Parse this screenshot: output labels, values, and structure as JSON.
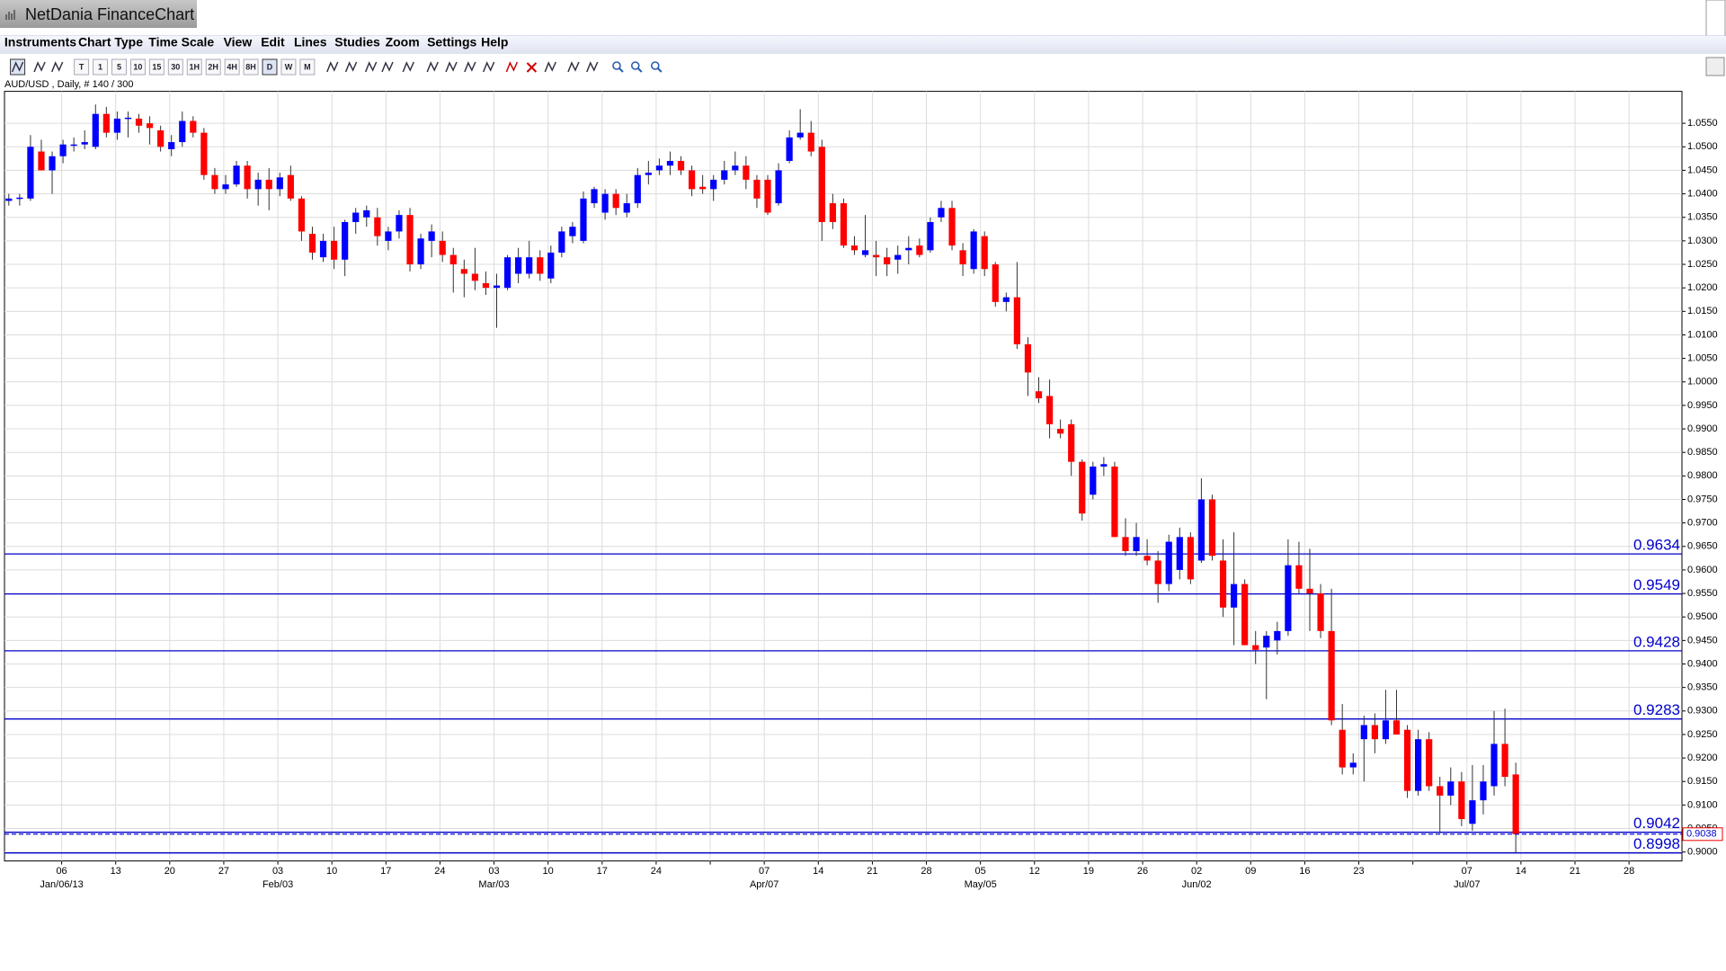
{
  "window": {
    "title": "NetDania FinanceChart"
  },
  "menu": [
    "Instruments",
    "Chart Type",
    "Time Scale",
    "View",
    "Edit",
    "Lines",
    "Studies",
    "Zoom",
    "Settings",
    "Help"
  ],
  "toolbar": [
    "T",
    "1",
    "5",
    "10",
    "15",
    "30",
    "1H",
    "2H",
    "4H",
    "8H",
    "D",
    "W",
    "M"
  ],
  "chart_data": {
    "type": "candlestick",
    "title": "AUD/USD , Daily, # 140 / 300",
    "up_color": "#0000ff",
    "down_color": "#ff0000",
    "grid": true,
    "ylim": [
      0.8981,
      1.0618
    ],
    "yticks": [
      {
        "value": 0.9,
        "label": "0.9000"
      },
      {
        "value": 0.905,
        "label": "0.9050"
      },
      {
        "value": 0.91,
        "label": "0.9100"
      },
      {
        "value": 0.915,
        "label": "0.9150"
      },
      {
        "value": 0.92,
        "label": "0.9200"
      },
      {
        "value": 0.925,
        "label": "0.9250"
      },
      {
        "value": 0.93,
        "label": "0.9300"
      },
      {
        "value": 0.935,
        "label": "0.9350"
      },
      {
        "value": 0.94,
        "label": "0.9400"
      },
      {
        "value": 0.945,
        "label": "0.9450"
      },
      {
        "value": 0.95,
        "label": "0.9500"
      },
      {
        "value": 0.955,
        "label": "0.9550"
      },
      {
        "value": 0.96,
        "label": "0.9600"
      },
      {
        "value": 0.965,
        "label": "0.9650"
      },
      {
        "value": 0.97,
        "label": "0.9700"
      },
      {
        "value": 0.975,
        "label": "0.9750"
      },
      {
        "value": 0.98,
        "label": "0.9800"
      },
      {
        "value": 0.985,
        "label": "0.9850"
      },
      {
        "value": 0.99,
        "label": "0.9900"
      },
      {
        "value": 0.995,
        "label": "0.9950"
      },
      {
        "value": 1.0,
        "label": "1.0000"
      },
      {
        "value": 1.005,
        "label": "1.0050"
      },
      {
        "value": 1.01,
        "label": "1.0100"
      },
      {
        "value": 1.015,
        "label": "1.0150"
      },
      {
        "value": 1.02,
        "label": "1.0200"
      },
      {
        "value": 1.025,
        "label": "1.0250"
      },
      {
        "value": 1.03,
        "label": "1.0300"
      },
      {
        "value": 1.035,
        "label": "1.0350"
      },
      {
        "value": 1.04,
        "label": "1.0400"
      },
      {
        "value": 1.045,
        "label": "1.0450"
      },
      {
        "value": 1.05,
        "label": "1.0500"
      },
      {
        "value": 1.055,
        "label": "1.0550"
      }
    ],
    "x_labels": [
      "06",
      "13",
      "20",
      "27",
      "03",
      "10",
      "17",
      "24",
      "03",
      "10",
      "17",
      "24",
      null,
      "07",
      "14",
      "21",
      "28",
      "05",
      "12",
      "19",
      "26",
      "02",
      "09",
      "16",
      "23",
      null,
      "07",
      "14",
      "21",
      "28"
    ],
    "month_labels": [
      "Jan/06/13",
      null,
      null,
      null,
      "Feb/03",
      null,
      null,
      null,
      "Mar/03",
      null,
      null,
      null,
      null,
      "Apr/07",
      null,
      null,
      null,
      "May/05",
      null,
      null,
      null,
      "Jun/02",
      null,
      null,
      null,
      null,
      "Jul/07",
      null,
      null,
      null
    ],
    "level_color": "#0000cc",
    "levels": [
      {
        "value": 0.9634,
        "label": "0.9634"
      },
      {
        "value": 0.9549,
        "label": "0.9549"
      },
      {
        "value": 0.9428,
        "label": "0.9428"
      },
      {
        "value": 0.9283,
        "label": "0.9283"
      },
      {
        "value": 0.9042,
        "label": "0.9042"
      },
      {
        "value": 0.8998,
        "label": "0.8998"
      }
    ],
    "last": {
      "value": 0.9038,
      "label": "0.9038"
    },
    "ohlc": [
      [
        1.0385,
        1.04,
        1.0375,
        1.039
      ],
      [
        1.039,
        1.04,
        1.0375,
        1.0392
      ],
      [
        1.039,
        1.0525,
        1.0385,
        1.05
      ],
      [
        1.049,
        1.0515,
        1.045,
        1.045
      ],
      [
        1.045,
        1.049,
        1.04,
        1.048
      ],
      [
        1.048,
        1.0515,
        1.0465,
        1.0505
      ],
      [
        1.0505,
        1.052,
        1.049,
        1.0505
      ],
      [
        1.0505,
        1.0535,
        1.0495,
        1.051
      ],
      [
        1.05,
        1.059,
        1.0495,
        1.057
      ],
      [
        1.057,
        1.0585,
        1.052,
        1.053
      ],
      [
        1.053,
        1.0575,
        1.0515,
        1.056
      ],
      [
        1.056,
        1.0575,
        1.052,
        1.0562
      ],
      [
        1.056,
        1.057,
        1.053,
        1.0545
      ],
      [
        1.055,
        1.0565,
        1.0505,
        1.054
      ],
      [
        1.0535,
        1.0545,
        1.049,
        1.05
      ],
      [
        1.0495,
        1.0525,
        1.048,
        1.051
      ],
      [
        1.051,
        1.0575,
        1.05,
        1.0555
      ],
      [
        1.0555,
        1.0565,
        1.052,
        1.053
      ],
      [
        1.053,
        1.054,
        1.043,
        1.044
      ],
      [
        1.044,
        1.0455,
        1.04,
        1.041
      ],
      [
        1.041,
        1.044,
        1.04,
        1.042
      ],
      [
        1.042,
        1.047,
        1.0415,
        1.046
      ],
      [
        1.046,
        1.047,
        1.039,
        1.041
      ],
      [
        1.041,
        1.0445,
        1.0375,
        1.043
      ],
      [
        1.043,
        1.0455,
        1.0365,
        1.041
      ],
      [
        1.041,
        1.0445,
        1.0395,
        1.0435
      ],
      [
        1.044,
        1.046,
        1.0385,
        1.039
      ],
      [
        1.039,
        1.0395,
        1.03,
        1.032
      ],
      [
        1.0315,
        1.033,
        1.026,
        1.0275
      ],
      [
        1.0265,
        1.0315,
        1.0255,
        1.03
      ],
      [
        1.03,
        1.033,
        1.024,
        1.026
      ],
      [
        1.026,
        1.0345,
        1.0225,
        1.034
      ],
      [
        1.034,
        1.037,
        1.0315,
        1.036
      ],
      [
        1.035,
        1.0375,
        1.033,
        1.0365
      ],
      [
        1.035,
        1.037,
        1.029,
        1.031
      ],
      [
        1.03,
        1.033,
        1.028,
        1.032
      ],
      [
        1.032,
        1.0365,
        1.0305,
        1.0355
      ],
      [
        1.0355,
        1.037,
        1.0235,
        1.025
      ],
      [
        1.025,
        1.0315,
        1.024,
        1.0305
      ],
      [
        1.03,
        1.0335,
        1.0265,
        1.032
      ],
      [
        1.03,
        1.032,
        1.0255,
        1.027
      ],
      [
        1.027,
        1.0285,
        1.019,
        1.025
      ],
      [
        1.024,
        1.026,
        1.018,
        1.023
      ],
      [
        1.023,
        1.0285,
        1.0195,
        1.0215
      ],
      [
        1.021,
        1.0235,
        1.0185,
        1.02
      ],
      [
        1.02,
        1.023,
        1.0115,
        1.0205
      ],
      [
        1.02,
        1.027,
        1.0195,
        1.0265
      ],
      [
        1.023,
        1.0285,
        1.021,
        1.0265
      ],
      [
        1.023,
        1.03,
        1.022,
        1.0265
      ],
      [
        1.0265,
        1.028,
        1.0215,
        1.023
      ],
      [
        1.022,
        1.029,
        1.021,
        1.0275
      ],
      [
        1.0275,
        1.033,
        1.0265,
        1.032
      ],
      [
        1.031,
        1.034,
        1.0295,
        1.033
      ],
      [
        1.03,
        1.0405,
        1.0295,
        1.039
      ],
      [
        1.038,
        1.0415,
        1.037,
        1.041
      ],
      [
        1.036,
        1.041,
        1.0345,
        1.04
      ],
      [
        1.04,
        1.041,
        1.0355,
        1.037
      ],
      [
        1.036,
        1.04,
        1.035,
        1.038
      ],
      [
        1.038,
        1.0455,
        1.037,
        1.044
      ],
      [
        1.044,
        1.047,
        1.042,
        1.0445
      ],
      [
        1.045,
        1.0475,
        1.044,
        1.046
      ],
      [
        1.046,
        1.049,
        1.044,
        1.047
      ],
      [
        1.047,
        1.048,
        1.044,
        1.045
      ],
      [
        1.045,
        1.046,
        1.0395,
        1.041
      ],
      [
        1.0415,
        1.044,
        1.04,
        1.041
      ],
      [
        1.041,
        1.044,
        1.0385,
        1.043
      ],
      [
        1.043,
        1.047,
        1.042,
        1.045
      ],
      [
        1.045,
        1.049,
        1.044,
        1.046
      ],
      [
        1.046,
        1.048,
        1.041,
        1.043
      ],
      [
        1.043,
        1.044,
        1.037,
        1.039
      ],
      [
        1.043,
        1.044,
        1.0355,
        1.036
      ],
      [
        1.038,
        1.0465,
        1.0375,
        1.045
      ],
      [
        1.047,
        1.0535,
        1.0465,
        1.052
      ],
      [
        1.052,
        1.058,
        1.0515,
        1.053
      ],
      [
        1.053,
        1.0555,
        1.048,
        1.049
      ],
      [
        1.05,
        1.0515,
        1.03,
        1.034
      ],
      [
        1.038,
        1.04,
        1.0325,
        1.034
      ],
      [
        1.038,
        1.039,
        1.0285,
        1.029
      ],
      [
        1.029,
        1.031,
        1.027,
        1.028
      ],
      [
        1.027,
        1.0355,
        1.0265,
        1.028
      ],
      [
        1.027,
        1.03,
        1.0225,
        1.0265
      ],
      [
        1.0265,
        1.0285,
        1.0225,
        1.025
      ],
      [
        1.026,
        1.029,
        1.023,
        1.027
      ],
      [
        1.028,
        1.031,
        1.025,
        1.0285
      ],
      [
        1.029,
        1.0305,
        1.0265,
        1.027
      ],
      [
        1.028,
        1.035,
        1.0275,
        1.034
      ],
      [
        1.035,
        1.0385,
        1.034,
        1.037
      ],
      [
        1.037,
        1.0385,
        1.028,
        1.029
      ],
      [
        1.028,
        1.0295,
        1.0225,
        1.025
      ],
      [
        1.024,
        1.0325,
        1.023,
        1.032
      ],
      [
        1.031,
        1.032,
        1.0225,
        1.024
      ],
      [
        1.025,
        1.0255,
        1.016,
        1.017
      ],
      [
        1.017,
        1.019,
        1.015,
        1.018
      ],
      [
        1.018,
        1.0255,
        1.007,
        1.008
      ],
      [
        1.008,
        1.0095,
        0.997,
        1.002
      ],
      [
        0.998,
        1.001,
        0.9955,
        0.9965
      ],
      [
        0.997,
        1.0005,
        0.988,
        0.991
      ],
      [
        0.99,
        0.992,
        0.988,
        0.989
      ],
      [
        0.991,
        0.992,
        0.98,
        0.983
      ],
      [
        0.983,
        0.9835,
        0.9705,
        0.972
      ],
      [
        0.976,
        0.983,
        0.975,
        0.982
      ],
      [
        0.982,
        0.984,
        0.98,
        0.9825
      ],
      [
        0.982,
        0.983,
        0.967,
        0.967
      ],
      [
        0.967,
        0.971,
        0.963,
        0.964
      ],
      [
        0.964,
        0.97,
        0.963,
        0.967
      ],
      [
        0.963,
        0.9665,
        0.961,
        0.962
      ],
      [
        0.962,
        0.964,
        0.953,
        0.957
      ],
      [
        0.957,
        0.9675,
        0.9555,
        0.966
      ],
      [
        0.96,
        0.969,
        0.958,
        0.967
      ],
      [
        0.967,
        0.968,
        0.957,
        0.958
      ],
      [
        0.962,
        0.9795,
        0.9615,
        0.975
      ],
      [
        0.975,
        0.976,
        0.962,
        0.963
      ],
      [
        0.962,
        0.9665,
        0.95,
        0.952
      ],
      [
        0.952,
        0.968,
        0.944,
        0.957
      ],
      [
        0.957,
        0.958,
        0.944,
        0.944
      ],
      [
        0.944,
        0.947,
        0.94,
        0.943
      ],
      [
        0.9435,
        0.947,
        0.9325,
        0.946
      ],
      [
        0.945,
        0.949,
        0.942,
        0.947
      ],
      [
        0.947,
        0.9665,
        0.946,
        0.961
      ],
      [
        0.961,
        0.966,
        0.955,
        0.956
      ],
      [
        0.956,
        0.9645,
        0.947,
        0.955
      ],
      [
        0.955,
        0.957,
        0.9455,
        0.947
      ],
      [
        0.947,
        0.956,
        0.927,
        0.928
      ],
      [
        0.926,
        0.9315,
        0.9165,
        0.918
      ],
      [
        0.918,
        0.921,
        0.9165,
        0.919
      ],
      [
        0.924,
        0.929,
        0.915,
        0.927
      ],
      [
        0.927,
        0.9295,
        0.921,
        0.924
      ],
      [
        0.924,
        0.9345,
        0.923,
        0.928
      ],
      [
        0.928,
        0.9345,
        0.925,
        0.925
      ],
      [
        0.926,
        0.927,
        0.9115,
        0.913
      ],
      [
        0.913,
        0.926,
        0.912,
        0.924
      ],
      [
        0.924,
        0.9255,
        0.913,
        0.914
      ],
      [
        0.914,
        0.916,
        0.904,
        0.912
      ],
      [
        0.912,
        0.918,
        0.91,
        0.915
      ],
      [
        0.915,
        0.917,
        0.9055,
        0.907
      ],
      [
        0.906,
        0.9185,
        0.9045,
        0.911
      ],
      [
        0.911,
        0.9185,
        0.908,
        0.915
      ],
      [
        0.914,
        0.93,
        0.912,
        0.923
      ],
      [
        0.923,
        0.9305,
        0.914,
        0.916
      ],
      [
        0.9165,
        0.919,
        0.8998,
        0.9038
      ]
    ]
  }
}
